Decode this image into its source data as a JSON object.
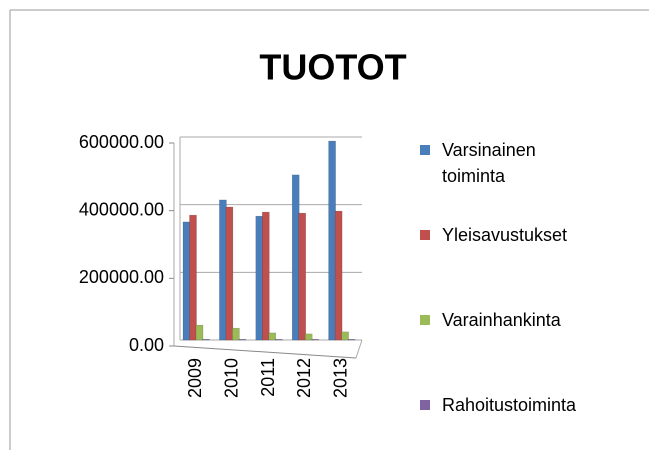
{
  "chart_data": {
    "type": "bar",
    "title": "TUOTOT",
    "categories": [
      "2009",
      "2010",
      "2011",
      "2012",
      "2013"
    ],
    "series": [
      {
        "name": "Varsinainen toiminta",
        "color": "#4a7ebb",
        "values": [
          349000,
          414000,
          366000,
          488000,
          588000
        ]
      },
      {
        "name": "Yleisavustukset",
        "color": "#c0504d",
        "values": [
          369000,
          393000,
          378000,
          375000,
          381000
        ]
      },
      {
        "name": "Varainhankinta",
        "color": "#9bbb59",
        "values": [
          44000,
          35000,
          21000,
          18000,
          24000
        ]
      },
      {
        "name": "Rahoitustoiminta",
        "color": "#8064a2",
        "values": [
          2000,
          2000,
          2000,
          2000,
          2000
        ]
      }
    ],
    "ylim": [
      0,
      600000
    ],
    "yticks": [
      {
        "value": 0,
        "label": "0.00"
      },
      {
        "value": 200000,
        "label": "200000.00"
      },
      {
        "value": 400000,
        "label": "400000.00"
      },
      {
        "value": 600000,
        "label": "600000.00"
      }
    ],
    "grid": true
  }
}
